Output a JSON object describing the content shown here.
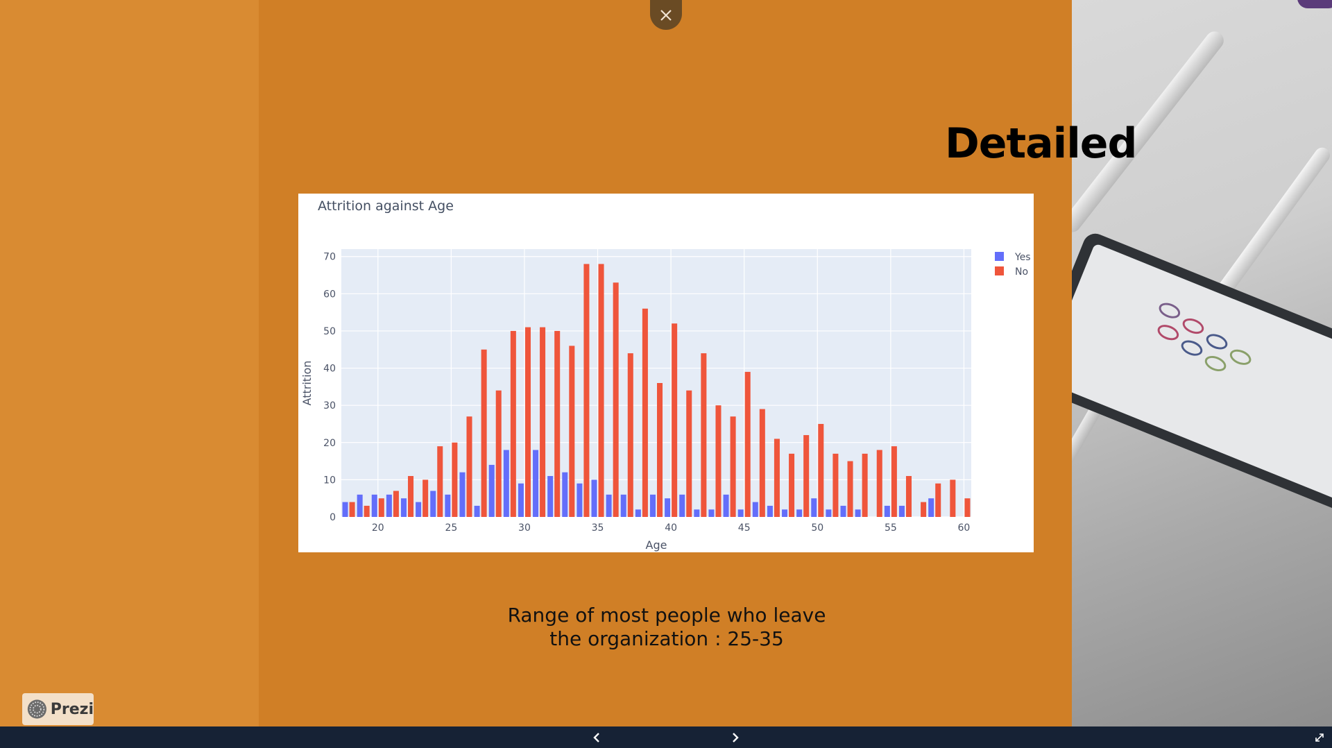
{
  "slide": {
    "heading": "Detailed",
    "caption_line1": "Range of most people who leave",
    "caption_line2": "the organization : 25-35"
  },
  "badge": {
    "label": "Prezi"
  },
  "controls": {
    "close_icon": "close-icon",
    "prev_icon": "chevron-left-icon",
    "next_icon": "chevron-right-icon",
    "fullscreen_icon": "fullscreen-icon"
  },
  "colors": {
    "yes": "#636efa",
    "no": "#ef553b",
    "plot_bg": "#e5ecf6",
    "stage": "#d07f26"
  },
  "chart_data": {
    "type": "bar",
    "title": "Attrition against Age",
    "xlabel": "Age",
    "ylabel": "Attrition",
    "xlim": [
      17.5,
      60.5
    ],
    "ylim": [
      0,
      72
    ],
    "yticks": [
      0,
      10,
      20,
      30,
      40,
      50,
      60,
      70
    ],
    "xticks": [
      20,
      25,
      30,
      35,
      40,
      45,
      50,
      55,
      60
    ],
    "legend": "top-right",
    "x": [
      18,
      19,
      20,
      21,
      22,
      23,
      24,
      25,
      26,
      27,
      28,
      29,
      30,
      31,
      32,
      33,
      34,
      35,
      36,
      37,
      38,
      39,
      40,
      41,
      42,
      43,
      44,
      45,
      46,
      47,
      48,
      49,
      50,
      51,
      52,
      53,
      54,
      55,
      56,
      57,
      58,
      59,
      60
    ],
    "series": [
      {
        "name": "Yes",
        "values": [
          4,
          6,
          6,
          6,
          5,
          4,
          7,
          6,
          12,
          3,
          14,
          18,
          9,
          18,
          11,
          12,
          9,
          10,
          6,
          6,
          2,
          6,
          5,
          6,
          2,
          2,
          6,
          2,
          4,
          3,
          2,
          2,
          5,
          2,
          3,
          2,
          0,
          3,
          3,
          0,
          5,
          0,
          0
        ]
      },
      {
        "name": "No",
        "values": [
          4,
          3,
          5,
          7,
          11,
          10,
          19,
          20,
          27,
          45,
          34,
          50,
          51,
          51,
          50,
          46,
          68,
          68,
          63,
          44,
          56,
          36,
          52,
          34,
          44,
          30,
          27,
          39,
          29,
          21,
          17,
          22,
          25,
          17,
          15,
          17,
          18,
          19,
          11,
          4,
          9,
          10,
          5
        ]
      }
    ]
  }
}
